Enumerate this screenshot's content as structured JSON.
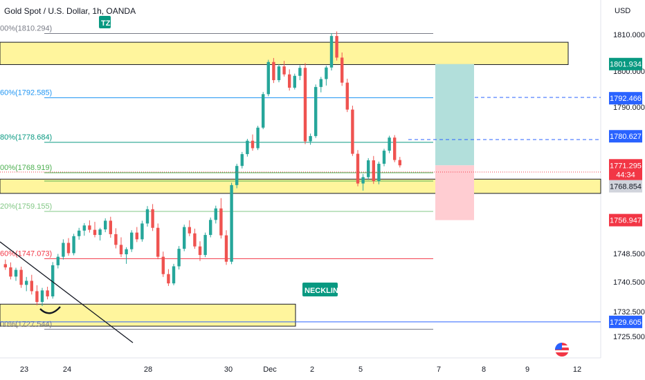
{
  "header": {
    "title": "Gold Spot / U.S. Dollar, 1h, OANDA",
    "currency": "USD"
  },
  "badges": {
    "tz": "TZ",
    "neckline": "NECKLINE"
  },
  "colors": {
    "up": "#26a69a",
    "down": "#ef5350",
    "zone_fill": "#fff59d",
    "zone_stroke": "#131722",
    "target_fill": "#b2dfdb",
    "stop_fill": "#ffcdd2",
    "blue": "#2962ff",
    "badge_green": "#089981"
  },
  "chart_data": {
    "type": "candlestick",
    "title": "Gold Spot / U.S. Dollar, 1h, OANDA",
    "x_ticks": [
      "23",
      "24",
      "28",
      "30",
      "Dec",
      "2",
      "5",
      "7",
      "8",
      "9",
      "12"
    ],
    "y_ticks": [
      1725.5,
      1732.5,
      1740.5,
      1748.5,
      1790.0,
      1800.0,
      1810.0
    ],
    "y_tick_labels": [
      "1725.500",
      "1732.500",
      "1740.500",
      "1748.500",
      "1790.000",
      "1800.000",
      "1810.000"
    ],
    "fib_levels": [
      {
        "label": "00%(1810.294)",
        "value": 1810.294,
        "color": "#787b86"
      },
      {
        "label": "60%(1792.585)",
        "value": 1792.585,
        "color": "#2196f3"
      },
      {
        "label": "80%(1778.684)",
        "value": 1778.684,
        "color": "#089981"
      },
      {
        "label": "00%(1768.919)",
        "value": 1768.919,
        "color": "#4caf50"
      },
      {
        "label": "20%(1759.155)",
        "value": 1759.155,
        "color": "#81c784"
      },
      {
        "label": "60%(1747.073)",
        "value": 1747.073,
        "color": "#f23645"
      },
      {
        "label": "00%(1727.544)",
        "value": 1727.544,
        "color": "#787b86"
      }
    ],
    "price_tags": [
      {
        "label": "1801.934",
        "value": 1801.934,
        "bg": "#089981",
        "fg": "#ffffff"
      },
      {
        "label": "1792.466",
        "value": 1792.466,
        "bg": "#2962ff",
        "fg": "#ffffff"
      },
      {
        "label": "1780.627",
        "value": 1780.627,
        "bg": "#2962ff",
        "fg": "#ffffff"
      },
      {
        "label": "1771.295",
        "value": 1771.295,
        "bg": "#f23645",
        "fg": "#ffffff"
      },
      {
        "label": "44:34",
        "value": 1768.5,
        "bg": "#f23645",
        "fg": "#ffffff"
      },
      {
        "label": "1768.854",
        "value": 1765.5,
        "bg": "#d1d4dc",
        "fg": "#131722"
      },
      {
        "label": "1756.947",
        "value": 1756.947,
        "bg": "#f23645",
        "fg": "#ffffff"
      },
      {
        "label": "1729.605",
        "value": 1729.605,
        "bg": "#2962ff",
        "fg": "#ffffff"
      }
    ],
    "zones": [
      {
        "name": "supply-zone",
        "top": 1807.9,
        "bottom": 1801.8,
        "x_start": 0,
        "x_end": 35.1
      },
      {
        "name": "neckline-zone",
        "top": 1767.3,
        "bottom": 1763.7,
        "x_start": 0,
        "x_end": 37.7
      },
      {
        "name": "demand-zone",
        "top": 1734.5,
        "bottom": 1728.4,
        "x_start": 0,
        "x_end": 18.2
      }
    ],
    "position": {
      "entry": 1771.295,
      "target": 1801.934,
      "stop": 1756.947,
      "x_start": 27.0,
      "x_end": 29.4
    },
    "candles": [
      [
        1745.5,
        1746.8,
        1743.9,
        1744.6
      ],
      [
        1744.6,
        1746.0,
        1741.2,
        1742.0
      ],
      [
        1742.0,
        1744.5,
        1740.8,
        1743.9
      ],
      [
        1743.9,
        1744.8,
        1738.9,
        1739.7
      ],
      [
        1739.7,
        1741.9,
        1738.0,
        1740.8
      ],
      [
        1740.8,
        1742.5,
        1737.1,
        1738.0
      ],
      [
        1738.0,
        1739.6,
        1734.2,
        1735.1
      ],
      [
        1735.1,
        1738.9,
        1734.0,
        1738.2
      ],
      [
        1738.2,
        1739.2,
        1735.8,
        1736.6
      ],
      [
        1736.6,
        1746.1,
        1736.0,
        1745.2
      ],
      [
        1745.2,
        1748.4,
        1744.3,
        1747.6
      ],
      [
        1747.6,
        1752.1,
        1746.8,
        1751.2
      ],
      [
        1751.2,
        1752.4,
        1747.9,
        1748.6
      ],
      [
        1748.6,
        1753.5,
        1748.0,
        1752.9
      ],
      [
        1752.9,
        1755.0,
        1752.0,
        1754.3
      ],
      [
        1754.3,
        1756.2,
        1753.0,
        1755.6
      ],
      [
        1755.6,
        1756.9,
        1753.8,
        1754.5
      ],
      [
        1754.5,
        1756.5,
        1752.6,
        1753.2
      ],
      [
        1753.2,
        1755.0,
        1751.8,
        1754.6
      ],
      [
        1754.6,
        1757.4,
        1753.9,
        1756.8
      ],
      [
        1756.8,
        1757.8,
        1752.5,
        1753.4
      ],
      [
        1753.4,
        1754.9,
        1749.8,
        1750.7
      ],
      [
        1750.7,
        1752.6,
        1747.5,
        1748.3
      ],
      [
        1748.3,
        1750.1,
        1745.6,
        1749.6
      ],
      [
        1749.6,
        1754.4,
        1748.9,
        1753.8
      ],
      [
        1753.8,
        1755.2,
        1751.4,
        1752.1
      ],
      [
        1752.1,
        1756.8,
        1751.5,
        1756.1
      ],
      [
        1756.1,
        1760.5,
        1755.3,
        1759.7
      ],
      [
        1759.7,
        1761.0,
        1754.2,
        1755.0
      ],
      [
        1755.0,
        1756.1,
        1746.9,
        1747.6
      ],
      [
        1747.6,
        1749.0,
        1741.9,
        1742.7
      ],
      [
        1742.7,
        1744.1,
        1739.4,
        1740.1
      ],
      [
        1740.1,
        1745.6,
        1739.6,
        1744.9
      ],
      [
        1744.9,
        1750.4,
        1744.0,
        1749.7
      ],
      [
        1749.7,
        1755.8,
        1749.1,
        1755.2
      ],
      [
        1755.2,
        1756.9,
        1752.9,
        1753.6
      ],
      [
        1753.6,
        1754.8,
        1749.7,
        1750.3
      ],
      [
        1750.3,
        1751.6,
        1746.4,
        1748.1
      ],
      [
        1748.1,
        1753.8,
        1747.5,
        1753.2
      ],
      [
        1753.2,
        1757.6,
        1752.6,
        1757.0
      ],
      [
        1757.0,
        1760.6,
        1756.1,
        1759.9
      ],
      [
        1759.9,
        1762.5,
        1752.3,
        1753.1
      ],
      [
        1753.1,
        1754.4,
        1745.3,
        1746.2
      ],
      [
        1746.2,
        1766.4,
        1745.5,
        1765.8
      ],
      [
        1765.8,
        1771.8,
        1765.0,
        1771.1
      ],
      [
        1771.1,
        1775.6,
        1770.3,
        1774.9
      ],
      [
        1774.9,
        1779.8,
        1774.1,
        1779.2
      ],
      [
        1779.2,
        1781.2,
        1776.0,
        1776.8
      ],
      [
        1776.8,
        1784.0,
        1776.2,
        1783.4
      ],
      [
        1783.4,
        1794.2,
        1782.9,
        1793.6
      ],
      [
        1793.6,
        1803.1,
        1793.0,
        1802.5
      ],
      [
        1802.5,
        1803.6,
        1796.7,
        1797.5
      ],
      [
        1797.5,
        1801.9,
        1796.9,
        1801.3
      ],
      [
        1801.3,
        1802.8,
        1798.5,
        1799.1
      ],
      [
        1799.1,
        1800.5,
        1794.6,
        1795.4
      ],
      [
        1795.4,
        1799.3,
        1794.9,
        1798.7
      ],
      [
        1798.7,
        1801.6,
        1797.5,
        1800.9
      ],
      [
        1800.9,
        1802.2,
        1778.1,
        1779.0
      ],
      [
        1779.0,
        1781.5,
        1777.9,
        1780.7
      ],
      [
        1780.7,
        1796.3,
        1780.1,
        1795.6
      ],
      [
        1795.6,
        1798.4,
        1794.1,
        1797.8
      ],
      [
        1797.8,
        1801.5,
        1796.0,
        1801.0
      ],
      [
        1801.0,
        1810.4,
        1800.2,
        1809.6
      ],
      [
        1809.6,
        1810.9,
        1802.9,
        1803.7
      ],
      [
        1803.7,
        1805.1,
        1795.9,
        1796.8
      ],
      [
        1796.8,
        1797.9,
        1788.4,
        1789.2
      ],
      [
        1789.2,
        1790.4,
        1774.3,
        1775.0
      ],
      [
        1775.0,
        1776.2,
        1765.5,
        1766.2
      ],
      [
        1766.2,
        1768.6,
        1764.4,
        1767.8
      ],
      [
        1767.8,
        1773.6,
        1767.1,
        1772.9
      ],
      [
        1772.9,
        1774.3,
        1766.1,
        1766.8
      ],
      [
        1766.8,
        1772.5,
        1766.0,
        1771.8
      ],
      [
        1771.8,
        1776.6,
        1771.0,
        1776.0
      ],
      [
        1776.0,
        1780.8,
        1775.2,
        1780.2
      ],
      [
        1780.2,
        1781.0,
        1772.3,
        1773.0
      ],
      [
        1773.0,
        1774.0,
        1770.6,
        1771.3
      ]
    ]
  }
}
